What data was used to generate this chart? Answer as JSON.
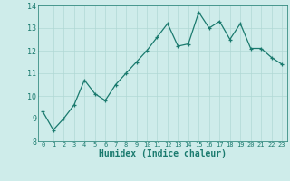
{
  "x": [
    0,
    1,
    2,
    3,
    4,
    5,
    6,
    7,
    8,
    9,
    10,
    11,
    12,
    13,
    14,
    15,
    16,
    17,
    18,
    19,
    20,
    21,
    22,
    23
  ],
  "y": [
    9.3,
    8.5,
    9.0,
    9.6,
    10.7,
    10.1,
    9.8,
    10.5,
    11.0,
    11.5,
    12.0,
    12.6,
    13.2,
    12.2,
    12.3,
    13.7,
    13.0,
    13.3,
    12.5,
    13.2,
    12.1,
    12.1,
    11.7,
    11.4
  ],
  "xlabel": "Humidex (Indice chaleur)",
  "ylim": [
    8,
    14
  ],
  "xlim": [
    -0.5,
    23.5
  ],
  "yticks": [
    8,
    9,
    10,
    11,
    12,
    13,
    14
  ],
  "xticks": [
    0,
    1,
    2,
    3,
    4,
    5,
    6,
    7,
    8,
    9,
    10,
    11,
    12,
    13,
    14,
    15,
    16,
    17,
    18,
    19,
    20,
    21,
    22,
    23
  ],
  "line_color": "#1a7a6e",
  "marker_color": "#1a7a6e",
  "bg_color": "#ceecea",
  "grid_color": "#b0d8d5",
  "tick_color": "#1a7a6e"
}
